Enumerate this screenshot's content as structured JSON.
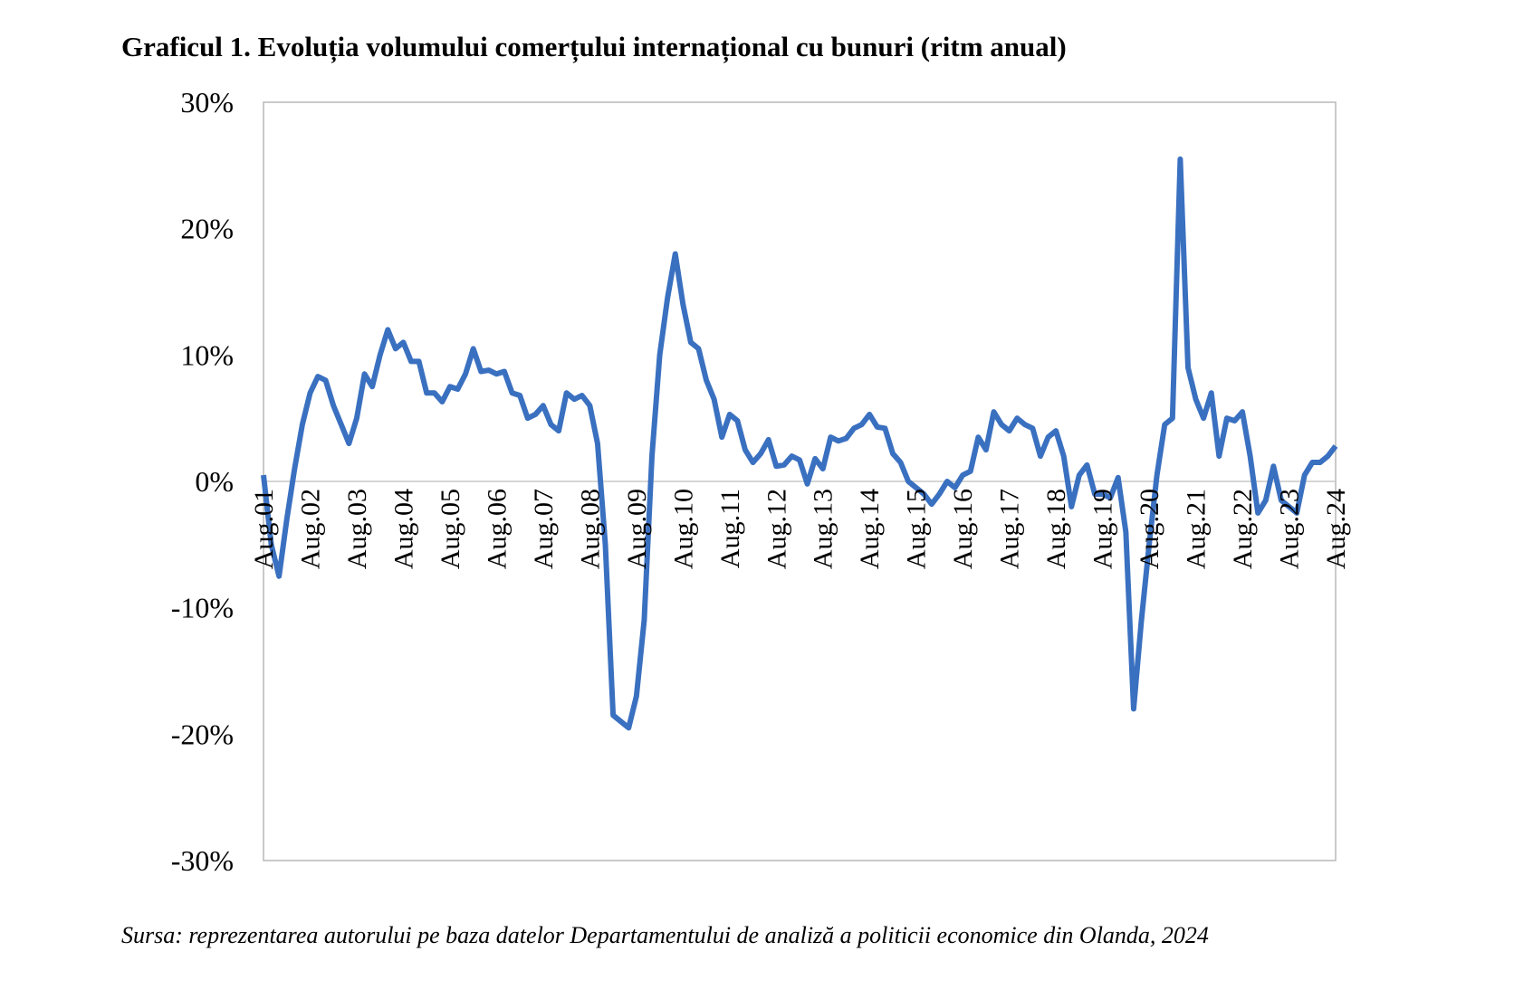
{
  "chart_data": {
    "type": "line",
    "title": "Graficul 1. Evoluția volumului comerțului internațional cu bunuri (ritm anual)",
    "source": "Sursa: reprezentarea autorului pe baza datelor Departamentului de analiză a politicii economice din Olanda, 2024",
    "categories": [
      "Aug.01",
      null,
      null,
      null,
      null,
      null,
      "Aug.02",
      null,
      null,
      null,
      null,
      null,
      "Aug.03",
      null,
      null,
      null,
      null,
      null,
      "Aug.04",
      null,
      null,
      null,
      null,
      null,
      "Aug.05",
      null,
      null,
      null,
      null,
      null,
      "Aug.06",
      null,
      null,
      null,
      null,
      null,
      "Aug.07",
      null,
      null,
      null,
      null,
      null,
      "Aug.08",
      null,
      null,
      null,
      null,
      null,
      "Aug.09",
      null,
      null,
      null,
      null,
      null,
      "Aug.10",
      null,
      null,
      null,
      null,
      null,
      "Aug.11",
      null,
      null,
      null,
      null,
      null,
      "Aug.12",
      null,
      null,
      null,
      null,
      null,
      "Aug.13",
      null,
      null,
      null,
      null,
      null,
      "Aug.14",
      null,
      null,
      null,
      null,
      null,
      "Aug.15",
      null,
      null,
      null,
      null,
      null,
      "Aug.16",
      null,
      null,
      null,
      null,
      null,
      "Aug.17",
      null,
      null,
      null,
      null,
      null,
      "Aug.18",
      null,
      null,
      null,
      null,
      null,
      "Aug.19",
      null,
      null,
      null,
      null,
      null,
      "Aug.20",
      null,
      null,
      null,
      null,
      null,
      "Aug.21",
      null,
      null,
      null,
      null,
      null,
      "Aug.22",
      null,
      null,
      null,
      null,
      null,
      "Aug.23",
      null,
      null,
      null,
      null,
      null,
      "Aug.24"
    ],
    "values": [
      0.5,
      -5,
      -7.5,
      -3,
      1,
      4.5,
      7,
      8.3,
      8,
      6,
      4.5,
      3,
      5,
      8.5,
      7.5,
      10,
      12,
      10.5,
      11,
      9.5,
      9.5,
      7,
      7,
      6.3,
      7.5,
      7.3,
      8.5,
      10.5,
      8.7,
      8.8,
      8.5,
      8.7,
      7,
      6.8,
      5,
      5.3,
      6,
      4.5,
      4,
      7,
      6.5,
      6.8,
      6,
      3,
      -5,
      -18.5,
      -19,
      -19.5,
      -17,
      -11,
      2,
      10,
      14.5,
      18,
      14,
      11,
      10.5,
      8,
      6.5,
      3.5,
      5.3,
      4.8,
      2.5,
      1.5,
      2.2,
      3.3,
      1.2,
      1.3,
      2,
      1.7,
      -0.2,
      1.8,
      1,
      3.5,
      3.2,
      3.4,
      4.2,
      4.5,
      5.3,
      4.3,
      4.2,
      2.2,
      1.5,
      0,
      -0.5,
      -1,
      -1.8,
      -1,
      0,
      -0.5,
      0.5,
      0.8,
      3.5,
      2.5,
      5.5,
      4.5,
      4,
      5,
      4.5,
      4.2,
      2,
      3.5,
      4,
      2,
      -2,
      0.5,
      1.3,
      -1,
      -1,
      -1.3,
      0.3,
      -4,
      -18,
      -11,
      -5,
      0.5,
      4.5,
      5,
      25.5,
      9,
      6.5,
      5,
      7,
      2,
      5,
      4.8,
      5.5,
      2,
      -2.5,
      -1.5,
      1.2,
      -1.5,
      -2,
      -2.5,
      0.5,
      1.5,
      1.5,
      2,
      2.8
    ],
    "color": "#3a70c0",
    "ylim": [
      -30,
      30
    ],
    "yticks": [
      {
        "value": -30,
        "label": "-30%"
      },
      {
        "value": -20,
        "label": "-20%"
      },
      {
        "value": -10,
        "label": "-10%"
      },
      {
        "value": 0,
        "label": "0%"
      },
      {
        "value": 10,
        "label": "10%"
      },
      {
        "value": 20,
        "label": "20%"
      },
      {
        "value": 30,
        "label": "30%"
      }
    ],
    "grid": false
  }
}
